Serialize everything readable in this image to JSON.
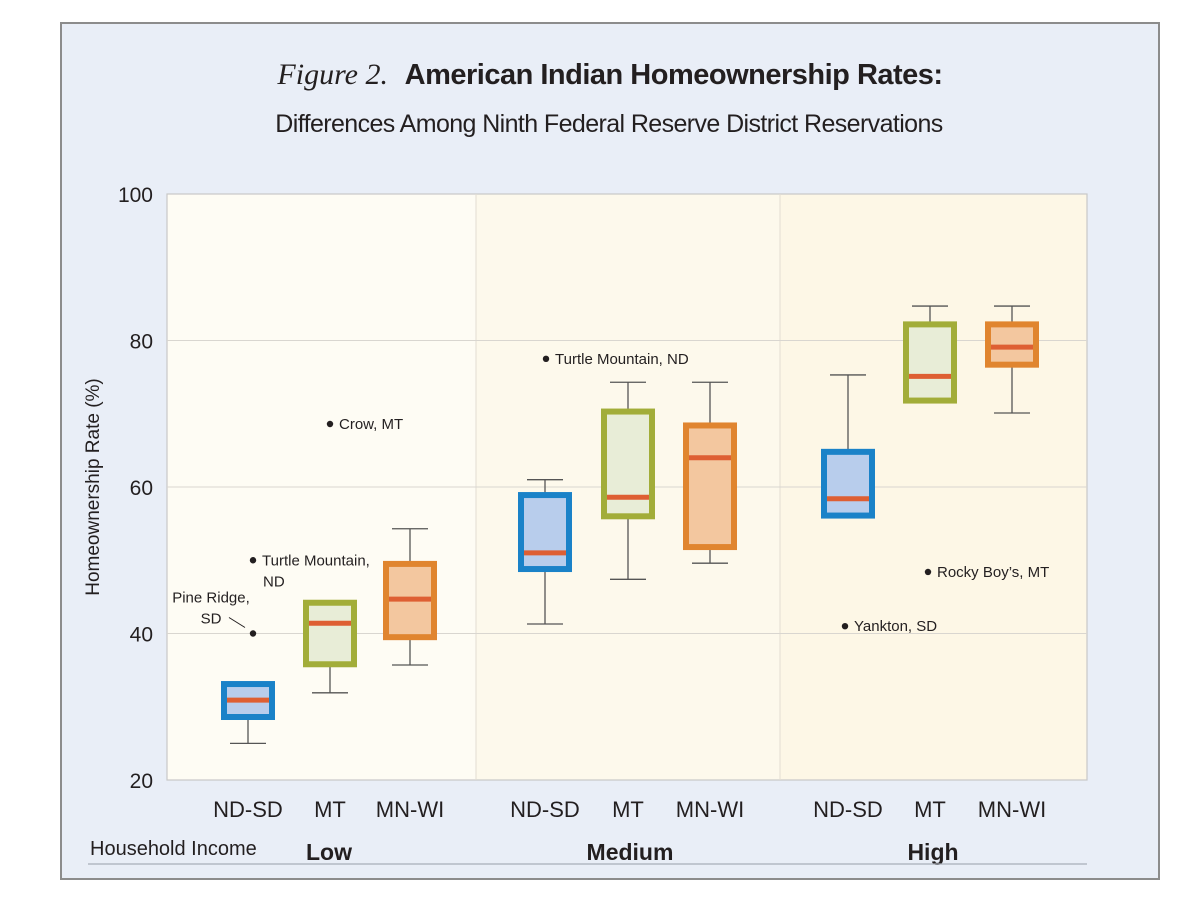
{
  "figure": {
    "label": "Figure 2.",
    "title": "American Indian Homeownership Rates:",
    "subtitle": "Differences Among Ninth Federal Reserve District Reservations"
  },
  "colors": {
    "frame_bg": "#e9eef7",
    "panel_low": "#fefcf4",
    "panel_medium": "#fdf9ec",
    "panel_high": "#fdf7e6",
    "gridline": "#d9d6d0",
    "median": "#de5f33",
    "whisker": "#555555",
    "outlier": "#231f20",
    "ND-SD": {
      "stroke": "#1a82c8",
      "fill": "#b8cdec"
    },
    "MT": {
      "stroke": "#a2ad39",
      "fill": "#e8edd7"
    },
    "MN-WI": {
      "stroke": "#e0852f",
      "fill": "#f3c79f"
    }
  },
  "chart_data": {
    "type": "box",
    "title": "American Indian Homeownership Rates: Differences Among Ninth Federal Reserve District Reservations",
    "ylabel": "Homeownership Rate (%)",
    "xlabel": "Household Income",
    "ylim": [
      20,
      100
    ],
    "yticks": [
      20,
      40,
      60,
      80,
      100
    ],
    "grid": true,
    "groups": [
      {
        "name": "Low",
        "boxes": [
          {
            "category": "ND-SD",
            "min": 25,
            "q1": 28.6,
            "median": 30.9,
            "q3": 33.1,
            "max": 33.1
          },
          {
            "category": "MT",
            "min": 31.9,
            "q1": 35.8,
            "median": 41.4,
            "q3": 44.2,
            "max": 44.2
          },
          {
            "category": "MN-WI",
            "min": 35.7,
            "q1": 39.5,
            "median": 44.7,
            "q3": 49.5,
            "max": 54.3
          }
        ],
        "outliers": [
          {
            "label": "Pine Ridge, SD",
            "category": "ND-SD",
            "value": 40
          },
          {
            "label": "Turtle Mountain, ND",
            "category": "ND-SD",
            "value": 50
          },
          {
            "label": "Crow, MT",
            "category": "MT",
            "value": 68.6
          }
        ]
      },
      {
        "name": "Medium",
        "boxes": [
          {
            "category": "ND-SD",
            "min": 41.3,
            "q1": 48.8,
            "median": 51,
            "q3": 58.9,
            "max": 61
          },
          {
            "category": "MT",
            "min": 47.4,
            "q1": 56,
            "median": 58.6,
            "q3": 70.3,
            "max": 74.3
          },
          {
            "category": "MN-WI",
            "min": 49.6,
            "q1": 51.8,
            "median": 64,
            "q3": 68.4,
            "max": 74.3
          }
        ],
        "outliers": [
          {
            "label": "Turtle Mountain, ND",
            "category": "ND-SD",
            "value": 77.5
          }
        ]
      },
      {
        "name": "High",
        "boxes": [
          {
            "category": "ND-SD",
            "min": 56.1,
            "q1": 56.1,
            "median": 58.4,
            "q3": 64.8,
            "max": 75.3
          },
          {
            "category": "MT",
            "min": 71.8,
            "q1": 71.8,
            "median": 75.1,
            "q3": 82.2,
            "max": 84.7
          },
          {
            "category": "MN-WI",
            "min": 70.1,
            "q1": 76.7,
            "median": 79.1,
            "q3": 82.2,
            "max": 84.7
          }
        ],
        "outliers": [
          {
            "label": "Yankton, SD",
            "category": "ND-SD",
            "value": 41
          },
          {
            "label": "Rocky Boy’s, MT",
            "category": "MT",
            "value": 48.4
          }
        ]
      }
    ]
  }
}
